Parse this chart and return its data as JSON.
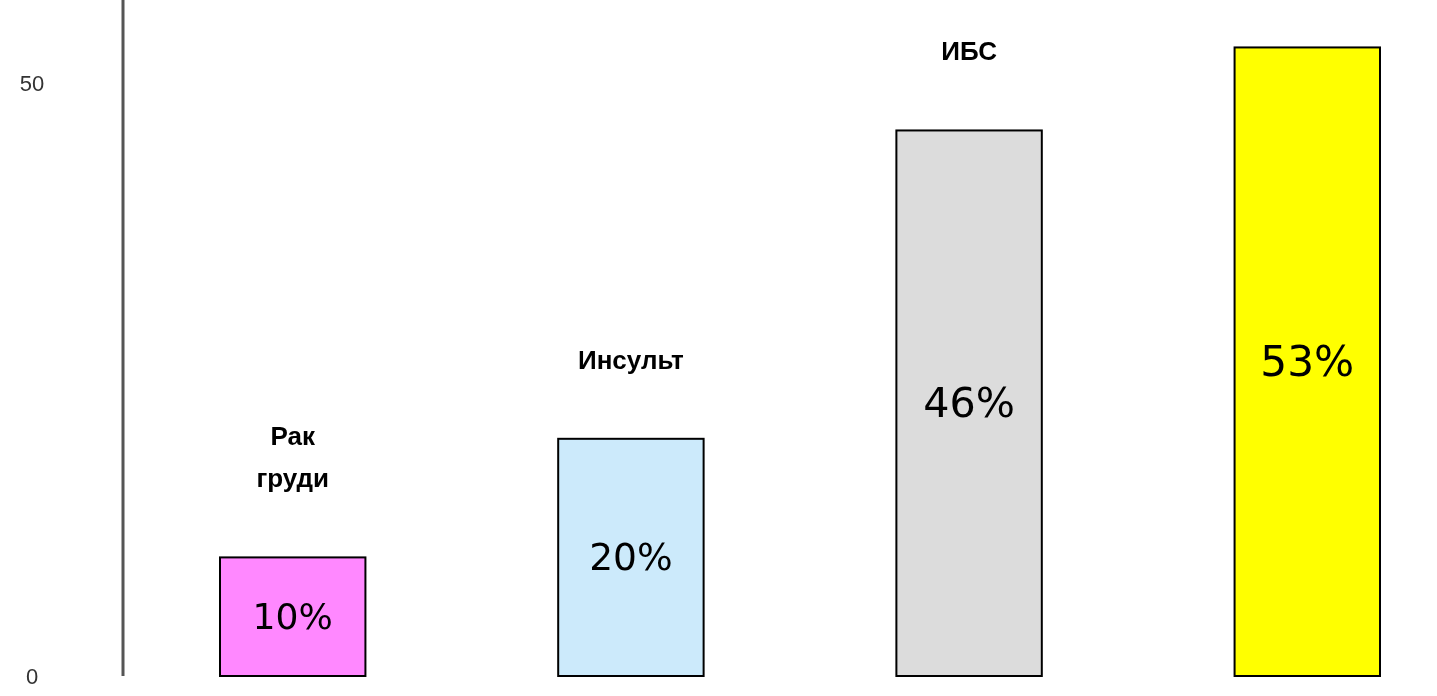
{
  "chart_data": {
    "type": "bar",
    "categories": [
      "Рак груди",
      "Инсульт",
      "ИБС",
      null
    ],
    "values": [
      10,
      20,
      46,
      53
    ],
    "colors": [
      "#ff88ff",
      "#cceafb",
      "#dcdcdc",
      "#ffff00"
    ],
    "value_labels": [
      "10%",
      "20%",
      "46%",
      "53%"
    ],
    "ylim": [
      0,
      57
    ],
    "yticks": [
      0,
      50
    ],
    "grid": false
  }
}
